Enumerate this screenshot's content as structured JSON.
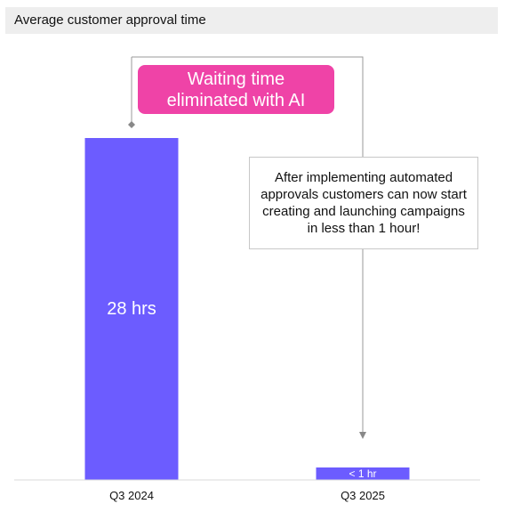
{
  "header": {
    "title": "Average customer approval time"
  },
  "chart_data": {
    "type": "bar",
    "categories": [
      "Q3 2024",
      "Q3 2025"
    ],
    "values": [
      28,
      1
    ],
    "value_labels": [
      "28 hrs",
      "< 1 hr"
    ],
    "ylim": [
      0,
      28
    ],
    "title": "Average customer approval time",
    "xlabel": "",
    "ylabel": "",
    "grid": false,
    "bar_color": "#6c5cff",
    "highlight_text": "Waiting time eliminated with AI",
    "note_text": "After implementing automated approvals customers can now start creating and launching campaigns in less than 1 hour!"
  },
  "colors": {
    "header_background": "#eeeeee",
    "bar": "#6c5cff",
    "highlight_background": "#ef43a7",
    "connector": "#999999",
    "baseline": "#d9d9d9"
  }
}
